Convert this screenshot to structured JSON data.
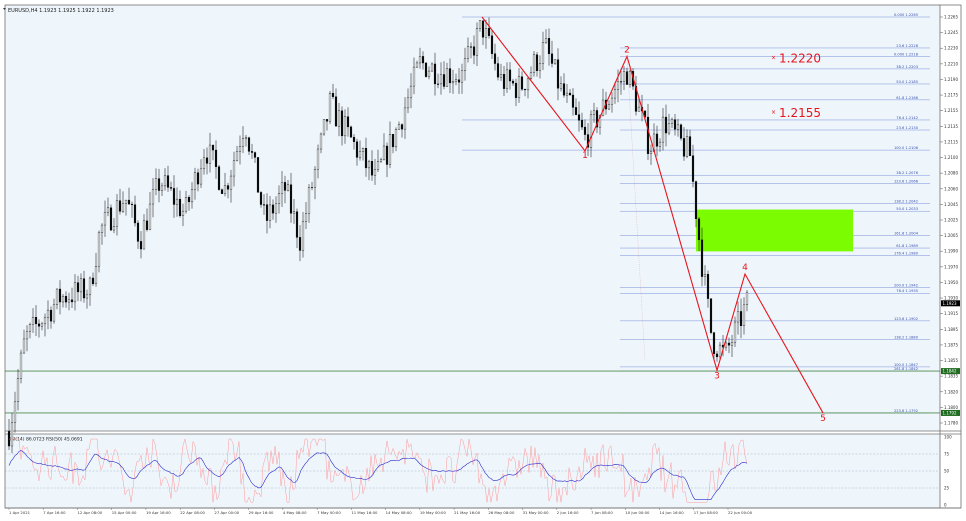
{
  "header": {
    "symbol_line": "EURUSD,H4  1.1923 1.1925 1.1922 1.1923"
  },
  "colors": {
    "background": "#eef6fc",
    "wave": "#e8141c",
    "fib": "#7a8fd8",
    "horizontal": "#4d8a4d",
    "zone": "#7cfc00",
    "candle": "#000000",
    "osc_fast": "#ff8c8c",
    "osc_slow": "#2b2bcc"
  },
  "chart_data": {
    "type": "candlestick",
    "price_axis_ticks": [
      "1.2265",
      "1.2245",
      "1.2230",
      "1.2210",
      "1.2190",
      "1.2175",
      "1.2155",
      "1.2135",
      "1.2115",
      "1.2100",
      "1.2080",
      "1.2060",
      "1.2045",
      "1.2025",
      "1.2005",
      "1.1990",
      "1.1970",
      "1.1950",
      "1.1930",
      "1.1915",
      "1.1895",
      "1.1875",
      "1.1855",
      "1.1835",
      "1.1820",
      "1.1800",
      "1.1780"
    ],
    "current_price": "1.1923",
    "horizontal_levels": [
      {
        "price": 1.1842,
        "label": "1.1842"
      },
      {
        "price": 1.1792,
        "label": "1.1792"
      }
    ],
    "time_axis_labels": [
      "1 Apr 2021",
      "7 Apr 16:00",
      "12 Apr 08:00",
      "15 Apr 00:00",
      "19 Apr 16:00",
      "22 Apr 08:00",
      "27 Apr 00:00",
      "29 Apr 16:00",
      "4 May 08:00",
      "7 May 00:00",
      "11 May 16:00",
      "14 May 08:00",
      "19 May 00:00",
      "21 May 16:00",
      "26 May 08:00",
      "31 May 00:00",
      "2 Jun 16:00",
      "7 Jun 08:00",
      "10 Jun 00:00",
      "14 Jun 16:00",
      "17 Jun 08:00",
      "22 Jun 00:00"
    ],
    "waves": [
      {
        "label": "",
        "price": 1.2265
      },
      {
        "label": "1",
        "price": 1.2105
      },
      {
        "label": "2",
        "price": 1.2218
      },
      {
        "label": "3",
        "price": 1.1843
      },
      {
        "label": "4",
        "price": 1.1958
      },
      {
        "label": "5",
        "price": 1.1792
      }
    ],
    "targets": [
      {
        "text": "1.2220",
        "price": 1.222
      },
      {
        "text": "1.2155",
        "price": 1.2155
      }
    ],
    "fib_levels": [
      {
        "label": "0.000   1.2265",
        "price": 1.2265
      },
      {
        "label": "23.6   1.2228",
        "price": 1.2228
      },
      {
        "label": "0.000   1.2218",
        "price": 1.2218
      },
      {
        "label": "38.2   1.2203",
        "price": 1.2203
      },
      {
        "label": "50.0   1.2185",
        "price": 1.2185
      },
      {
        "label": "61.8   1.2166",
        "price": 1.2166
      },
      {
        "label": "76.4   1.2142",
        "price": 1.2142
      },
      {
        "label": "23.6   1.2130",
        "price": 1.213
      },
      {
        "label": "100.0   1.2106",
        "price": 1.2106
      },
      {
        "label": "38.2   1.2076",
        "price": 1.2076
      },
      {
        "label": "123.6   1.2066",
        "price": 1.2066
      },
      {
        "label": "138.2   1.2042",
        "price": 1.2042
      },
      {
        "label": "50.0   1.2033",
        "price": 1.2033
      },
      {
        "label": "161.8   1.2004",
        "price": 1.2004
      },
      {
        "label": "61.8   1.1989",
        "price": 1.1989
      },
      {
        "label": "176.4   1.1980",
        "price": 1.198
      },
      {
        "label": "200.0   1.1942",
        "price": 1.1942
      },
      {
        "label": "76.4   1.1935",
        "price": 1.1935
      },
      {
        "label": "123.6   1.1902",
        "price": 1.1902
      },
      {
        "label": "138.2   1.1880",
        "price": 1.188
      },
      {
        "label": "100.0   1.1847",
        "price": 1.1847
      },
      {
        "label": "261.8   1.1842",
        "price": 1.1842
      },
      {
        "label": "223.6   1.1792",
        "price": 1.1792
      }
    ],
    "zone": {
      "price_top": 1.2035,
      "price_bottom": 1.1985
    },
    "indicator": {
      "title": "RSI(14) 86.0723  RSI(50) 45.0691",
      "axis_ticks": [
        "100",
        "75",
        "50",
        "25",
        "0"
      ],
      "levels": [
        75,
        50,
        25
      ]
    }
  }
}
